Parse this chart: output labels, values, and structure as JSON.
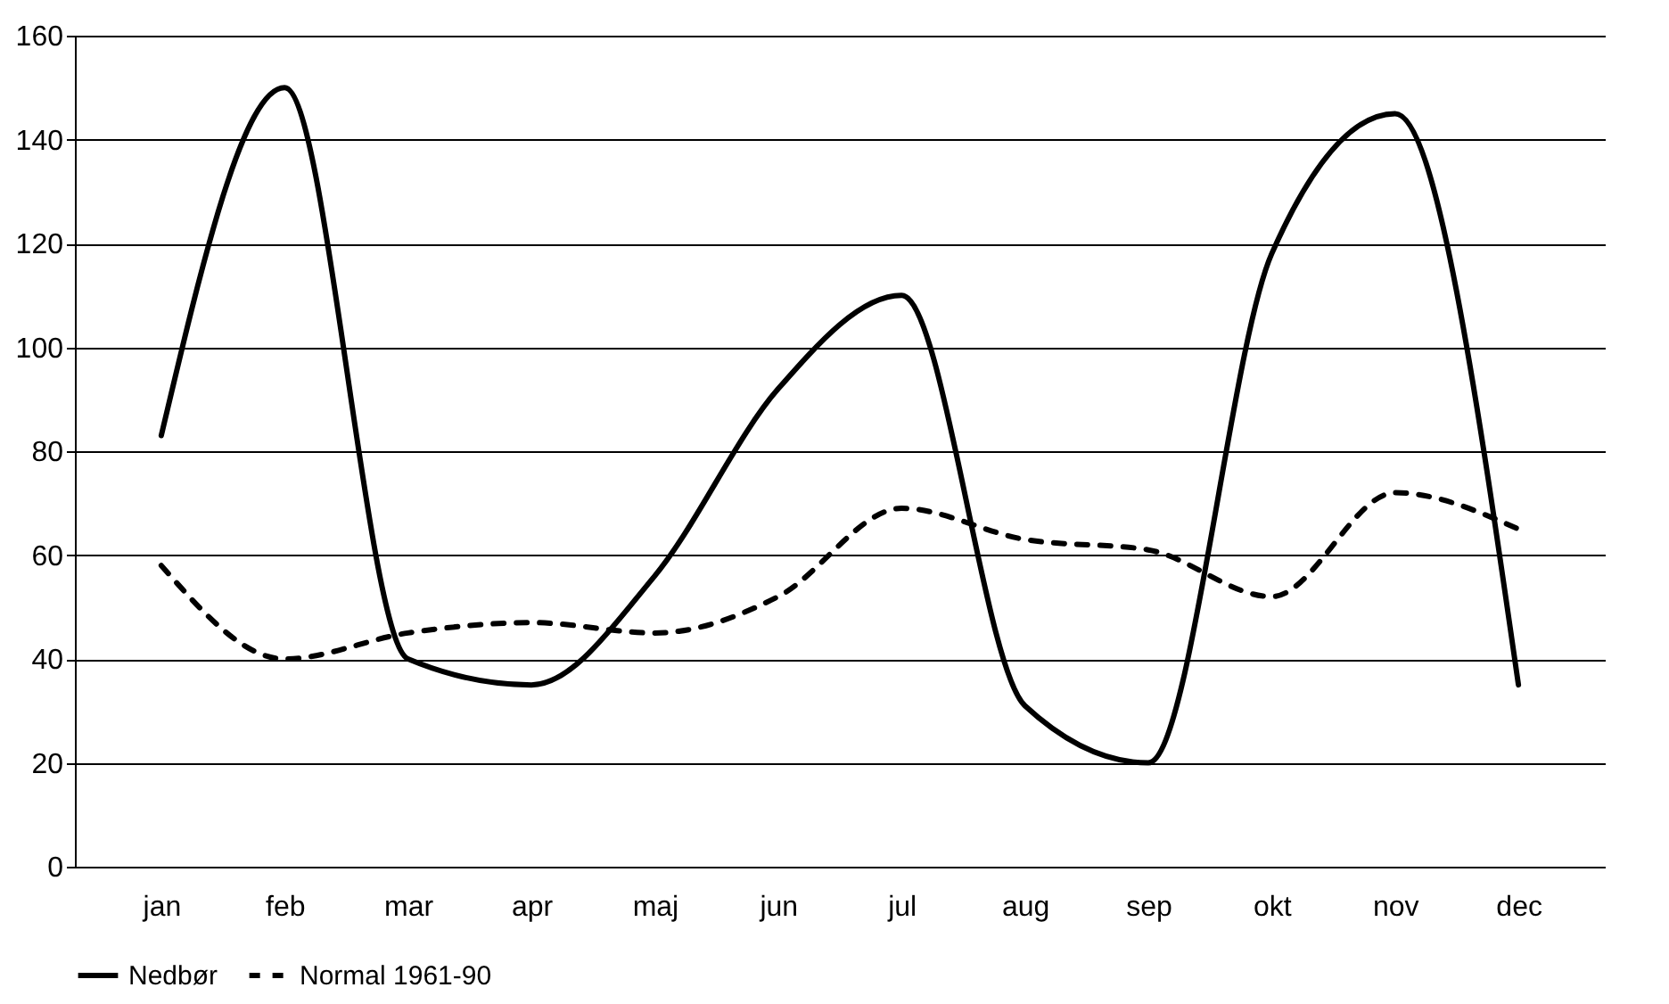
{
  "chart_data": {
    "type": "line",
    "categories": [
      "jan",
      "feb",
      "mar",
      "apr",
      "maj",
      "jun",
      "jul",
      "aug",
      "sep",
      "okt",
      "nov",
      "dec"
    ],
    "series": [
      {
        "name": "Nedbør",
        "color": "#000000",
        "line_style": "solid",
        "values": [
          83,
          150,
          40,
          35,
          56,
          92,
          110,
          31,
          20,
          118,
          145,
          35
        ]
      },
      {
        "name": "Normal 1961-90",
        "color": "#000000",
        "line_style": "dashed",
        "values": [
          58,
          40,
          45,
          47,
          45,
          52,
          69,
          63,
          61,
          52,
          72,
          65
        ]
      }
    ],
    "ylim": [
      0,
      160
    ],
    "yticks": [
      0,
      20,
      40,
      60,
      80,
      100,
      120,
      140,
      160
    ],
    "grid": "y",
    "legend": "bottom",
    "marker": "none"
  }
}
